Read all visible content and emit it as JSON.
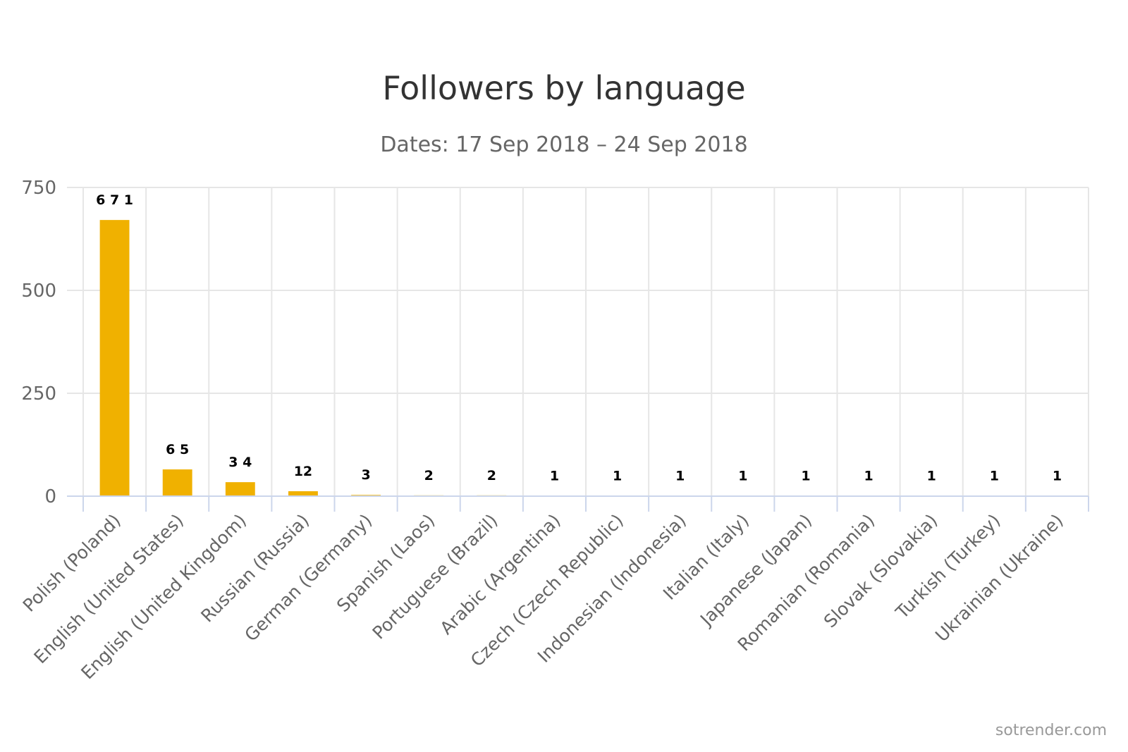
{
  "chart_data": {
    "type": "bar",
    "title": "Followers by language",
    "subtitle": "Dates: 17 Sep 2018 – 24 Sep 2018",
    "categories": [
      "Polish (Poland)",
      "English (United States)",
      "English (United Kingdom)",
      "Russian (Russia)",
      "German (Germany)",
      "Spanish (Laos)",
      "Portuguese (Brazil)",
      "Arabic (Argentina)",
      "Czech (Czech Republic)",
      "Indonesian (Indonesia)",
      "Italian (Italy)",
      "Japanese (Japan)",
      "Romanian (Romania)",
      "Slovak (Slovakia)",
      "Turkish (Turkey)",
      "Ukrainian (Ukraine)"
    ],
    "values": [
      671,
      65,
      34,
      12,
      3,
      2,
      2,
      1,
      1,
      1,
      1,
      1,
      1,
      1,
      1,
      1
    ],
    "data_labels": [
      "6 7 1",
      "6 5",
      "3 4",
      "12",
      "3",
      "2",
      "2",
      "1",
      "1",
      "1",
      "1",
      "1",
      "1",
      "1",
      "1",
      "1"
    ],
    "xlabel": "",
    "ylabel": "",
    "ylim": [
      0,
      750
    ],
    "yticks": [
      "0",
      "250",
      "500",
      "750"
    ],
    "bar_color": "#F0B100",
    "grid": true,
    "legend": "none"
  },
  "credit": "sotrender.com"
}
